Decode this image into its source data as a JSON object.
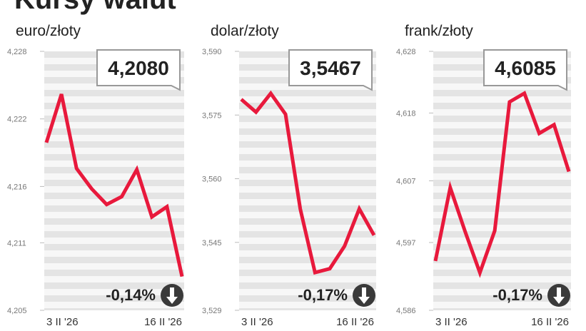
{
  "title": "Kursy walut",
  "chart_data": [
    {
      "type": "line",
      "title": "euro/złoty",
      "color": "#e8193c",
      "categories": [
        "3 II '26",
        null,
        null,
        null,
        null,
        null,
        null,
        null,
        null,
        "16 II '26"
      ],
      "values": [
        4.2199,
        4.2242,
        4.2176,
        4.2158,
        4.2144,
        4.2151,
        4.2175,
        4.2133,
        4.2142,
        4.208
      ],
      "ylim": [
        4.205,
        4.228
      ],
      "yticks": [
        {
          "value": 4.228,
          "label": "4,228"
        },
        {
          "value": 4.222,
          "label": "4,222"
        },
        {
          "value": 4.216,
          "label": "4,216"
        },
        {
          "value": 4.211,
          "label": "4,211"
        },
        {
          "value": 4.205,
          "label": "4,205"
        }
      ],
      "last_label": "4,2080",
      "change_label": "-0,14%"
    },
    {
      "type": "line",
      "title": "dolar/złoty",
      "color": "#e8193c",
      "categories": [
        "3 II '26",
        null,
        null,
        null,
        null,
        null,
        null,
        null,
        null,
        "16 II '26"
      ],
      "values": [
        3.5787,
        3.5757,
        3.5801,
        3.5752,
        3.5529,
        3.5379,
        3.5388,
        3.5441,
        3.5529,
        3.5467
      ],
      "ylim": [
        3.529,
        3.59
      ],
      "yticks": [
        {
          "value": 3.59,
          "label": "3,590"
        },
        {
          "value": 3.575,
          "label": "3,575"
        },
        {
          "value": 3.56,
          "label": "3,560"
        },
        {
          "value": 3.545,
          "label": "3,545"
        },
        {
          "value": 3.529,
          "label": "3,529"
        }
      ],
      "last_label": "3,5467",
      "change_label": "-0,17%"
    },
    {
      "type": "line",
      "title": "frank/złoty",
      "color": "#e8193c",
      "categories": [
        "3 II '26",
        null,
        null,
        null,
        null,
        null,
        null,
        null,
        null,
        "16 II '26"
      ],
      "values": [
        4.594,
        4.6059,
        4.5988,
        4.5921,
        4.5989,
        4.6198,
        4.6212,
        4.6147,
        4.6161,
        4.6085
      ],
      "ylim": [
        4.586,
        4.628
      ],
      "yticks": [
        {
          "value": 4.628,
          "label": "4,628"
        },
        {
          "value": 4.618,
          "label": "4,618"
        },
        {
          "value": 4.607,
          "label": "4,607"
        },
        {
          "value": 4.597,
          "label": "4,597"
        },
        {
          "value": 4.586,
          "label": "4,586"
        }
      ],
      "last_label": "4,6085",
      "change_label": "-0,17%"
    }
  ]
}
